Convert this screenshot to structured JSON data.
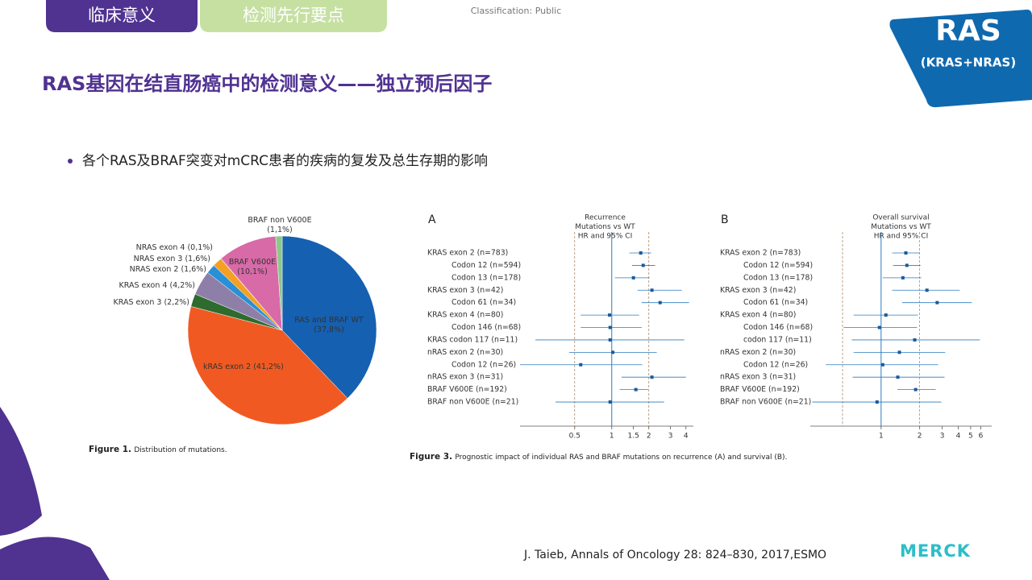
{
  "header": {
    "tabs": [
      "临床意义",
      "检测先行要点"
    ],
    "classification": "Classification: Public",
    "badge": {
      "title": "RAS",
      "subtitle": "(KRAS+NRAS)"
    },
    "title": "RAS基因在结直肠癌中的检测意义——独立预后因子",
    "bullet": "各个RAS及BRAF突变对mCRC患者的疾病的复发及总生存期的影响"
  },
  "chart_data": [
    {
      "type": "pie",
      "categories": [
        "RAS and BRAF WT",
        "kRAS exon 2",
        "KRAS exon 3",
        "KRAS exon 4",
        "NRAS exon 2",
        "NRAS exon 3",
        "NRAS exon 4",
        "BRAF V600E",
        "BRAF non V600E"
      ],
      "values": [
        37.8,
        41.2,
        2.2,
        4.2,
        1.6,
        1.6,
        0.1,
        10.1,
        1.1
      ],
      "value_labels": [
        "(37,8%)",
        "(41,2%)",
        "(2,2%)",
        "(4,2%)",
        "(1,6%)",
        "(1,6%)",
        "(0,1%)",
        "(10,1%)",
        "(1,1%)"
      ],
      "colors": [
        "#1560b0",
        "#f05a22",
        "#2e6b2e",
        "#8e7fa8",
        "#2a8fd6",
        "#f4a021",
        "#c0392b",
        "#d86aa8",
        "#8dc88a"
      ],
      "caption_label": "Figure 1.",
      "caption": "Distribution of mutations."
    },
    {
      "type": "forest",
      "panel": "A",
      "title": [
        "Recurrence",
        "Mutations vs WT",
        "HR and 95% CI"
      ],
      "categories": [
        "KRAS exon 2 (n=783)",
        "Codon 12 (n=594)",
        "Codon 13 (n=178)",
        "KRAS exon 3 (n=42)",
        "Codon 61 (n=34)",
        "KRAS exon 4 (n=80)",
        "Codon 146 (n=68)",
        "KRAS codon 117 (n=11)",
        "nRAS exon 2 (n=30)",
        "Codon 12 (n=26)",
        "nRAS exon 3 (n=31)",
        "BRAF V600E (n=192)",
        "BRAF non V600E (n=21)"
      ],
      "values": [
        1.72,
        1.8,
        1.5,
        2.12,
        2.47,
        0.96,
        0.97,
        0.97,
        1.02,
        0.56,
        2.12,
        1.57,
        0.97
      ],
      "ci_low": [
        1.39,
        1.46,
        1.06,
        1.62,
        1.75,
        0.56,
        0.56,
        0.24,
        0.45,
        0.18,
        1.2,
        1.16,
        0.35
      ],
      "ci_high": [
        2.09,
        2.25,
        2.03,
        3.71,
        4.24,
        1.67,
        1.75,
        3.88,
        2.32,
        1.77,
        4.0,
        1.97,
        2.66
      ],
      "xlim": [
        0.18,
        4.6
      ],
      "xticks": [
        0.5,
        1,
        1.5,
        2,
        3,
        4
      ],
      "log_x": true,
      "reference_line": 1,
      "dashed_lines": [
        0.5,
        2
      ],
      "color": "#2b7bbf",
      "caption_label": "Figure 3.",
      "caption": "Prognostic impact of individual RAS and BRAF mutations on recurrence (A) and survival (B)."
    },
    {
      "type": "forest",
      "panel": "B",
      "title": [
        "Overall survival",
        "Mutations vs WT",
        "HR and 95% CI"
      ],
      "categories": [
        "KRAS exon 2 (n=783)",
        "Codon 12 (n=594)",
        "Codon 13 (n=178)",
        "KRAS exon 3 (n=42)",
        "Codon 61 (n=34)",
        "KRAS exon 4 (n=80)",
        "Codon 146 (n=68)",
        "codon 117 (n=11)",
        "nRAS exon 2 (n=30)",
        "Codon 12 (n=26)",
        "nRAS exon 3 (n=31)",
        "BRAF V600E (n=192)",
        "BRAF non V600E (n=21)"
      ],
      "values": [
        1.56,
        1.59,
        1.48,
        2.28,
        2.74,
        1.09,
        0.97,
        1.83,
        1.39,
        1.03,
        1.35,
        1.86,
        0.93
      ],
      "ci_low": [
        1.22,
        1.24,
        1.03,
        1.22,
        1.46,
        0.61,
        0.51,
        0.59,
        0.61,
        0.37,
        0.6,
        1.34,
        0.29
      ],
      "ci_high": [
        2.0,
        2.03,
        2.06,
        4.11,
        5.11,
        1.94,
        1.91,
        5.9,
        3.17,
        2.79,
        3.13,
        2.67,
        2.95
      ],
      "xlim": [
        0.28,
        7.3
      ],
      "xticks": [
        1,
        2,
        3,
        4,
        5,
        6
      ],
      "log_x": true,
      "reference_line": 1,
      "dashed_lines": [
        0.5,
        2
      ],
      "color": "#2b7bbf"
    }
  ],
  "footer": {
    "citation": "J. Taieb, Annals of Oncology 28: 824–830, 2017,ESMO",
    "logo": "MERCK"
  }
}
